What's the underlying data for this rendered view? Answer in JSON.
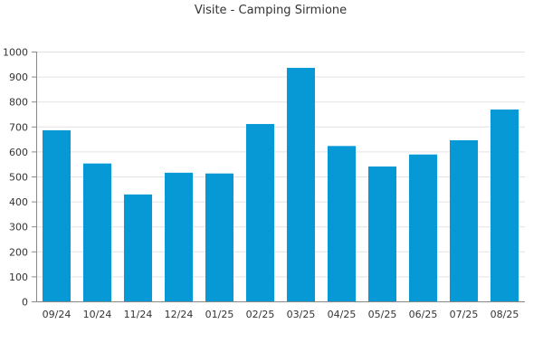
{
  "chart_data": {
    "type": "bar",
    "title": "Visite - Camping Sirmione",
    "xlabel": "",
    "ylabel": "",
    "categories": [
      "09/24",
      "10/24",
      "11/24",
      "12/24",
      "01/25",
      "02/25",
      "03/25",
      "04/25",
      "05/25",
      "06/25",
      "07/25",
      "08/25"
    ],
    "values": [
      685,
      552,
      428,
      515,
      512,
      710,
      935,
      622,
      540,
      588,
      645,
      768
    ],
    "ylim": [
      0,
      1000
    ],
    "yticks": [
      "0",
      "100",
      "200",
      "300",
      "400",
      "500",
      "600",
      "700",
      "800",
      "900",
      "1000"
    ],
    "grid": true,
    "legend": "none",
    "bar_color": "#0799d6",
    "grid_color": "#e3e3e3",
    "axis_color": "#888888"
  }
}
